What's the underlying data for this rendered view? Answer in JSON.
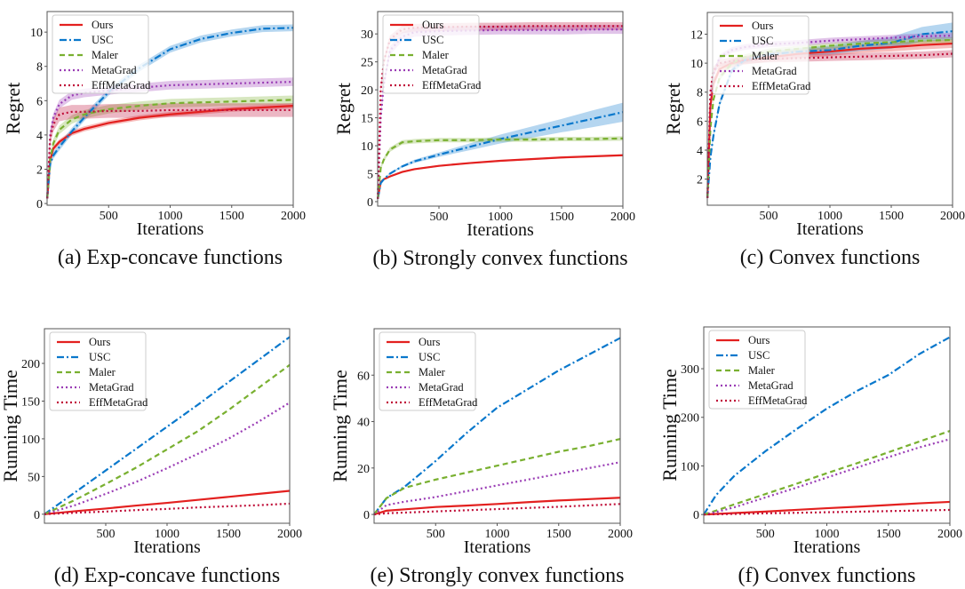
{
  "colors": {
    "Ours": "#e3201f",
    "USC": "#0a78cc",
    "Maler": "#79b030",
    "MetaGrad": "#9a3db5",
    "EffMetaGrad": "#c0103a"
  },
  "chart_data": [
    {
      "type": "line",
      "title": "(a)  Exp-concave functions",
      "xlabel": "Iterations",
      "ylabel": "Regret",
      "xlim": [
        0,
        2000
      ],
      "ylim": [
        -0.1,
        11.2
      ],
      "xticks": [
        500,
        1000,
        1500,
        2000
      ],
      "yticks": [
        0,
        2,
        4,
        6,
        8,
        10
      ],
      "legend": "top-left",
      "grid": false,
      "x": [
        1,
        25,
        50,
        100,
        200,
        300,
        500,
        750,
        1000,
        1250,
        1500,
        1750,
        2000
      ],
      "series": [
        {
          "name": "Ours",
          "values": [
            0.3,
            2.5,
            3.2,
            3.6,
            4.1,
            4.35,
            4.7,
            5.0,
            5.2,
            5.35,
            5.5,
            5.6,
            5.7
          ],
          "band": 0.15
        },
        {
          "name": "USC",
          "values": [
            0.3,
            2.3,
            2.8,
            3.3,
            4.2,
            5.0,
            6.5,
            7.9,
            9.0,
            9.6,
            9.95,
            10.2,
            10.25
          ],
          "band": 0.2
        },
        {
          "name": "Maler",
          "values": [
            0.3,
            2.6,
            3.5,
            4.3,
            4.9,
            5.2,
            5.5,
            5.7,
            5.85,
            5.9,
            5.95,
            6.0,
            6.05
          ],
          "band": 0.25
        },
        {
          "name": "MetaGrad",
          "values": [
            0.3,
            4.0,
            5.0,
            5.8,
            6.3,
            6.45,
            6.6,
            6.75,
            6.9,
            6.95,
            7.0,
            7.05,
            7.1
          ],
          "band": 0.25
        },
        {
          "name": "EffMetaGrad",
          "values": [
            0.3,
            3.8,
            4.6,
            5.2,
            5.35,
            5.35,
            5.4,
            5.4,
            5.45,
            5.45,
            5.45,
            5.45,
            5.45
          ],
          "band": 0.4
        }
      ]
    },
    {
      "type": "line",
      "title": "(b)  Strongly convex functions",
      "xlabel": "Iterations",
      "ylabel": "Regret",
      "xlim": [
        0,
        2000
      ],
      "ylim": [
        -0.8,
        34
      ],
      "xticks": [
        500,
        1000,
        1500,
        2000
      ],
      "yticks": [
        0,
        5,
        10,
        15,
        20,
        25,
        30
      ],
      "legend": "top-left",
      "grid": false,
      "x": [
        1,
        25,
        50,
        100,
        200,
        300,
        500,
        750,
        1000,
        1250,
        1500,
        1750,
        2000
      ],
      "series": [
        {
          "name": "Ours",
          "values": [
            0.5,
            3.5,
            4.0,
            4.5,
            5.3,
            5.8,
            6.4,
            6.9,
            7.3,
            7.6,
            7.9,
            8.1,
            8.3
          ],
          "band": 0.15
        },
        {
          "name": "USC",
          "values": [
            0.5,
            3.3,
            4.0,
            5.0,
            6.3,
            7.2,
            8.4,
            9.8,
            11.2,
            12.4,
            13.6,
            14.8,
            16.0
          ],
          "band": [
            0.1,
            0.1,
            0.1,
            0.15,
            0.2,
            0.3,
            0.4,
            0.6,
            0.8,
            1.0,
            1.2,
            1.5,
            1.7
          ]
        },
        {
          "name": "Maler",
          "values": [
            0.5,
            6.0,
            7.5,
            9.3,
            10.6,
            10.8,
            11.0,
            11.0,
            11.1,
            11.1,
            11.2,
            11.2,
            11.3
          ],
          "band": 0.4
        },
        {
          "name": "MetaGrad",
          "values": [
            0.5,
            15,
            21,
            27,
            29.5,
            30.3,
            30.5,
            30.6,
            30.7,
            30.7,
            30.7,
            30.8,
            30.8
          ],
          "band": 0.8
        },
        {
          "name": "EffMetaGrad",
          "values": [
            0.5,
            20,
            25,
            29,
            30.8,
            31.1,
            31.2,
            31.3,
            31.3,
            31.4,
            31.4,
            31.4,
            31.4
          ],
          "band": 0.7
        }
      ]
    },
    {
      "type": "line",
      "title": "(c)  Convex functions",
      "xlabel": "Iterations",
      "ylabel": "Regret",
      "xlim": [
        0,
        2000
      ],
      "ylim": [
        0.2,
        13.5
      ],
      "xticks": [
        500,
        1000,
        1500,
        2000
      ],
      "yticks": [
        2,
        4,
        6,
        8,
        10,
        12
      ],
      "legend": "top-left",
      "grid": false,
      "x": [
        1,
        25,
        50,
        100,
        200,
        300,
        500,
        750,
        1000,
        1250,
        1500,
        1750,
        2000
      ],
      "series": [
        {
          "name": "Ours",
          "values": [
            0.7,
            7,
            8.6,
            9.6,
            10.0,
            10.2,
            10.4,
            10.65,
            10.8,
            11.0,
            11.1,
            11.25,
            11.35
          ],
          "band": 0.3
        },
        {
          "name": "USC",
          "values": [
            0.7,
            3.5,
            5.0,
            7.2,
            9.5,
            10.2,
            10.6,
            10.8,
            10.9,
            11.2,
            11.4,
            12.0,
            12.2
          ],
          "band": [
            0.2,
            0.2,
            0.2,
            0.2,
            0.2,
            0.2,
            0.2,
            0.25,
            0.3,
            0.35,
            0.4,
            0.5,
            0.6
          ]
        },
        {
          "name": "Maler",
          "values": [
            0.7,
            5.5,
            7.5,
            9.0,
            10.0,
            10.4,
            10.8,
            11.0,
            11.2,
            11.35,
            11.45,
            11.55,
            11.6
          ],
          "band": 0.2
        },
        {
          "name": "MetaGrad",
          "values": [
            0.7,
            7.5,
            9.2,
            10.4,
            10.9,
            11.1,
            11.3,
            11.4,
            11.55,
            11.65,
            11.75,
            11.85,
            11.9
          ],
          "band": 0.2
        },
        {
          "name": "EffMetaGrad",
          "values": [
            0.7,
            8,
            9.5,
            10.0,
            10.15,
            10.2,
            10.3,
            10.35,
            10.4,
            10.45,
            10.5,
            10.55,
            10.65
          ],
          "band": 0.25
        }
      ]
    },
    {
      "type": "line",
      "title": "(d)  Exp-concave functions",
      "xlabel": "Iterations",
      "ylabel": "Running Time",
      "xlim": [
        0,
        2000
      ],
      "ylim": [
        -12,
        246
      ],
      "xticks": [
        500,
        1000,
        1500,
        2000
      ],
      "yticks": [
        0,
        50,
        100,
        150,
        200
      ],
      "legend": "top-left",
      "grid": false,
      "x": [
        0,
        250,
        500,
        750,
        1000,
        1250,
        1500,
        1750,
        2000
      ],
      "series": [
        {
          "name": "Ours",
          "values": [
            0,
            4,
            7.5,
            11.5,
            15,
            19,
            23,
            27,
            31
          ]
        },
        {
          "name": "USC",
          "values": [
            0,
            29,
            58,
            87,
            116,
            145,
            175,
            205,
            235
          ]
        },
        {
          "name": "Maler",
          "values": [
            0,
            19,
            40,
            62,
            86,
            110,
            138,
            168,
            198
          ]
        },
        {
          "name": "MetaGrad",
          "values": [
            0,
            12,
            27,
            43,
            61,
            80,
            100,
            123,
            148
          ]
        },
        {
          "name": "EffMetaGrad",
          "values": [
            0,
            2,
            3.5,
            5.5,
            7,
            9,
            10.5,
            12,
            14
          ]
        }
      ]
    },
    {
      "type": "line",
      "title": "(e)  Strongly convex functions",
      "xlabel": "Iterations",
      "ylabel": "Running Time",
      "xlim": [
        0,
        2000
      ],
      "ylim": [
        -3.8,
        80
      ],
      "xticks": [
        500,
        1000,
        1500,
        2000
      ],
      "yticks": [
        0,
        20,
        40,
        60
      ],
      "legend": "top-left",
      "grid": false,
      "x": [
        0,
        100,
        250,
        500,
        750,
        1000,
        1250,
        1500,
        1750,
        2000
      ],
      "series": [
        {
          "name": "Ours",
          "values": [
            0,
            1.6,
            2.2,
            3.2,
            3.8,
            4.5,
            5.3,
            6.0,
            6.6,
            7.2
          ]
        },
        {
          "name": "USC",
          "values": [
            0,
            7,
            12,
            23,
            35,
            46,
            54,
            62,
            69,
            76
          ]
        },
        {
          "name": "Maler",
          "values": [
            0,
            7,
            11.5,
            15,
            18,
            21,
            24,
            27,
            29.5,
            32.5
          ]
        },
        {
          "name": "MetaGrad",
          "values": [
            0,
            4,
            5.5,
            7.5,
            10,
            12.5,
            15,
            17.5,
            20,
            22.5
          ]
        },
        {
          "name": "EffMetaGrad",
          "values": [
            0,
            0.5,
            0.8,
            1.3,
            1.8,
            2.3,
            2.8,
            3.3,
            3.9,
            4.5
          ]
        }
      ]
    },
    {
      "type": "line",
      "title": "(f)  Convex functions",
      "xlabel": "Iterations",
      "ylabel": "Running Time",
      "xlim": [
        0,
        2000
      ],
      "ylim": [
        -18,
        386
      ],
      "xticks": [
        500,
        1000,
        1500,
        2000
      ],
      "yticks": [
        0,
        100,
        200,
        300
      ],
      "legend": "top-left",
      "grid": false,
      "x": [
        0,
        100,
        250,
        500,
        750,
        1000,
        1250,
        1500,
        1750,
        2000
      ],
      "series": [
        {
          "name": "Ours",
          "values": [
            0,
            1.2,
            3,
            6,
            9.5,
            13,
            16,
            19.5,
            23,
            26
          ]
        },
        {
          "name": "USC",
          "values": [
            0,
            40,
            80,
            130,
            175,
            218,
            255,
            287,
            330,
            365
          ]
        },
        {
          "name": "Maler",
          "values": [
            0,
            8,
            21,
            42,
            63,
            85,
            106,
            128,
            150,
            172
          ]
        },
        {
          "name": "MetaGrad",
          "values": [
            0,
            5,
            15,
            35,
            55,
            76,
            97,
            118,
            138,
            155
          ]
        },
        {
          "name": "EffMetaGrad",
          "values": [
            0,
            0.5,
            1.2,
            2.4,
            3.5,
            4.7,
            5.8,
            7,
            8.2,
            9.5
          ]
        }
      ]
    }
  ]
}
